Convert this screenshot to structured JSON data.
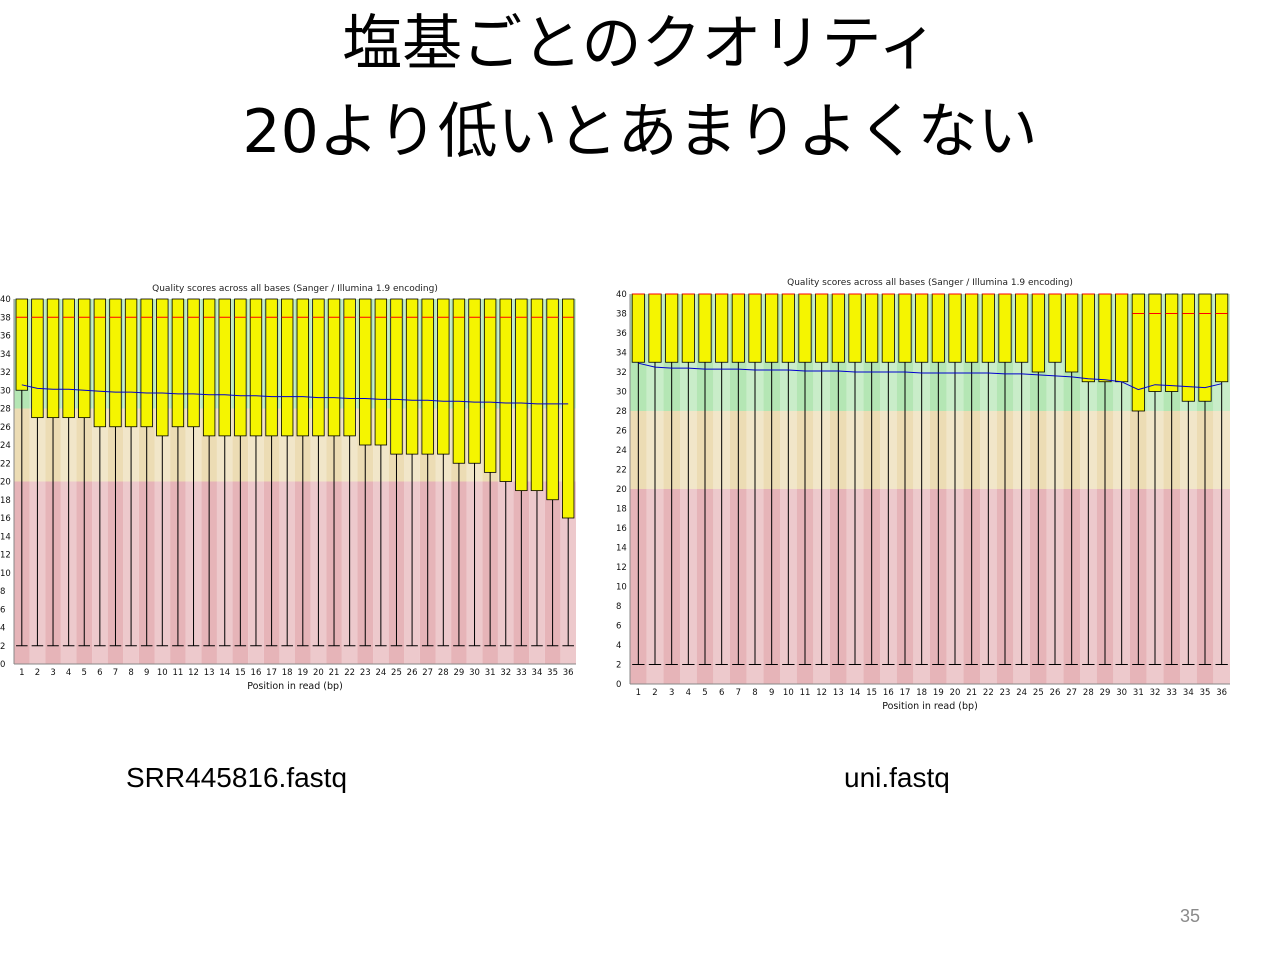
{
  "slide": {
    "title_line1": "塩基ごとのクオリティ",
    "title_line2": "20より低いとあまりよくない",
    "caption_left": "SRR445816.fastq",
    "caption_right": "uni.fastq",
    "page_number": "35"
  },
  "colors": {
    "box_fill": "#f5f500",
    "box_stroke": "#000000",
    "median_line": "#ff0000",
    "mean_line": "#0000cc",
    "zone_good": "#b4e6b4",
    "zone_ok": "#ecdcb4",
    "zone_bad": "#e6b4b8"
  },
  "chart_data": [
    {
      "type": "box",
      "title": "Quality scores across all bases (Sanger / Illumina 1.9 encoding)",
      "xlabel": "Position in read (bp)",
      "ylabel": "",
      "ylim": [
        0,
        40
      ],
      "yticks": [
        0,
        2,
        4,
        6,
        8,
        10,
        12,
        14,
        16,
        18,
        20,
        22,
        24,
        26,
        28,
        30,
        32,
        34,
        36,
        38,
        40
      ],
      "ytick_labels": [
        "0",
        "2",
        "4",
        "6",
        "8",
        "10",
        "12",
        "14",
        "16",
        "18",
        "20",
        "22",
        "24",
        "26",
        "28",
        "30",
        "32",
        "34",
        "36",
        "38",
        "40"
      ],
      "categories": [
        "1",
        "2",
        "3",
        "4",
        "5",
        "6",
        "7",
        "8",
        "9",
        "10",
        "11",
        "12",
        "13",
        "14",
        "15",
        "16",
        "17",
        "18",
        "19",
        "20",
        "21",
        "22",
        "23",
        "24",
        "25",
        "26",
        "27",
        "28",
        "29",
        "30",
        "31",
        "32",
        "33",
        "34",
        "35",
        "36"
      ],
      "zones": [
        {
          "name": "good",
          "from": 28,
          "to": 40
        },
        {
          "name": "ok",
          "from": 20,
          "to": 28
        },
        {
          "name": "bad",
          "from": 0,
          "to": 20
        }
      ],
      "q1": [
        30,
        27,
        27,
        27,
        27,
        26,
        26,
        26,
        26,
        25,
        26,
        26,
        25,
        25,
        25,
        25,
        25,
        25,
        25,
        25,
        25,
        25,
        24,
        24,
        23,
        23,
        23,
        23,
        22,
        22,
        21,
        20,
        19,
        19,
        18,
        16
      ],
      "q3": [
        40,
        40,
        40,
        40,
        40,
        40,
        40,
        40,
        40,
        40,
        40,
        40,
        40,
        40,
        40,
        40,
        40,
        40,
        40,
        40,
        40,
        40,
        40,
        40,
        40,
        40,
        40,
        40,
        40,
        40,
        40,
        40,
        40,
        40,
        40,
        40
      ],
      "median": [
        38,
        38,
        38,
        38,
        38,
        38,
        38,
        38,
        38,
        38,
        38,
        38,
        38,
        38,
        38,
        38,
        38,
        38,
        38,
        38,
        38,
        38,
        38,
        38,
        38,
        38,
        38,
        38,
        38,
        38,
        38,
        38,
        38,
        38,
        38,
        38
      ],
      "whisker_low": [
        2,
        2,
        2,
        2,
        2,
        2,
        2,
        2,
        2,
        2,
        2,
        2,
        2,
        2,
        2,
        2,
        2,
        2,
        2,
        2,
        2,
        2,
        2,
        2,
        2,
        2,
        2,
        2,
        2,
        2,
        2,
        2,
        2,
        2,
        2,
        2
      ],
      "whisker_high": [
        40,
        40,
        40,
        40,
        40,
        40,
        40,
        40,
        40,
        40,
        40,
        40,
        40,
        40,
        40,
        40,
        40,
        40,
        40,
        40,
        40,
        40,
        40,
        40,
        40,
        40,
        40,
        40,
        40,
        40,
        40,
        40,
        40,
        40,
        40,
        40
      ],
      "mean": [
        30.6,
        30.2,
        30.1,
        30.1,
        30.0,
        29.9,
        29.8,
        29.8,
        29.7,
        29.7,
        29.6,
        29.6,
        29.5,
        29.5,
        29.4,
        29.4,
        29.3,
        29.3,
        29.3,
        29.2,
        29.2,
        29.1,
        29.1,
        29.0,
        29.0,
        28.9,
        28.9,
        28.8,
        28.8,
        28.7,
        28.7,
        28.6,
        28.6,
        28.5,
        28.5,
        28.5
      ]
    },
    {
      "type": "box",
      "title": "Quality scores across all bases (Sanger / Illumina 1.9 encoding)",
      "xlabel": "Position in read (bp)",
      "ylabel": "",
      "ylim": [
        0,
        40
      ],
      "yticks": [
        0,
        2,
        4,
        6,
        8,
        10,
        12,
        14,
        16,
        18,
        20,
        22,
        24,
        26,
        28,
        30,
        32,
        34,
        36,
        38,
        40
      ],
      "ytick_labels": [
        "0",
        "2",
        "4",
        "6",
        "8",
        "10",
        "12",
        "14",
        "16",
        "18",
        "20",
        "22",
        "24",
        "26",
        "28",
        "30",
        "32",
        "34",
        "36",
        "38",
        "40"
      ],
      "categories": [
        "1",
        "2",
        "3",
        "4",
        "5",
        "6",
        "7",
        "8",
        "9",
        "10",
        "11",
        "12",
        "13",
        "14",
        "15",
        "16",
        "17",
        "18",
        "19",
        "20",
        "21",
        "22",
        "23",
        "24",
        "25",
        "26",
        "27",
        "28",
        "29",
        "30",
        "31",
        "32",
        "33",
        "34",
        "35",
        "36"
      ],
      "zones": [
        {
          "name": "good",
          "from": 28,
          "to": 40
        },
        {
          "name": "ok",
          "from": 20,
          "to": 28
        },
        {
          "name": "bad",
          "from": 0,
          "to": 20
        }
      ],
      "q1": [
        33,
        33,
        33,
        33,
        33,
        33,
        33,
        33,
        33,
        33,
        33,
        33,
        33,
        33,
        33,
        33,
        33,
        33,
        33,
        33,
        33,
        33,
        33,
        33,
        32,
        33,
        32,
        31,
        31,
        31,
        28,
        30,
        30,
        29,
        29,
        31
      ],
      "q3": [
        40,
        40,
        40,
        40,
        40,
        40,
        40,
        40,
        40,
        40,
        40,
        40,
        40,
        40,
        40,
        40,
        40,
        40,
        40,
        40,
        40,
        40,
        40,
        40,
        40,
        40,
        40,
        40,
        40,
        40,
        40,
        40,
        40,
        40,
        40,
        40
      ],
      "median": [
        40,
        40,
        40,
        40,
        40,
        40,
        40,
        40,
        40,
        40,
        40,
        40,
        40,
        40,
        40,
        40,
        40,
        40,
        40,
        40,
        40,
        40,
        40,
        40,
        40,
        40,
        40,
        40,
        40,
        40,
        38,
        38,
        38,
        38,
        38,
        38
      ],
      "whisker_low": [
        2,
        2,
        2,
        2,
        2,
        2,
        2,
        2,
        2,
        2,
        2,
        2,
        2,
        2,
        2,
        2,
        2,
        2,
        2,
        2,
        2,
        2,
        2,
        2,
        2,
        2,
        2,
        2,
        2,
        2,
        2,
        2,
        2,
        2,
        2,
        2
      ],
      "whisker_high": [
        40,
        40,
        40,
        40,
        40,
        40,
        40,
        40,
        40,
        40,
        40,
        40,
        40,
        40,
        40,
        40,
        40,
        40,
        40,
        40,
        40,
        40,
        40,
        40,
        40,
        40,
        40,
        40,
        40,
        40,
        40,
        40,
        40,
        40,
        40,
        40
      ],
      "mean": [
        32.9,
        32.5,
        32.4,
        32.4,
        32.3,
        32.3,
        32.3,
        32.2,
        32.2,
        32.2,
        32.1,
        32.1,
        32.1,
        32.0,
        32.0,
        32.0,
        32.0,
        31.9,
        31.9,
        31.9,
        31.9,
        31.9,
        31.8,
        31.8,
        31.7,
        31.6,
        31.5,
        31.3,
        31.2,
        31.0,
        30.2,
        30.7,
        30.6,
        30.5,
        30.4,
        30.8
      ]
    }
  ]
}
